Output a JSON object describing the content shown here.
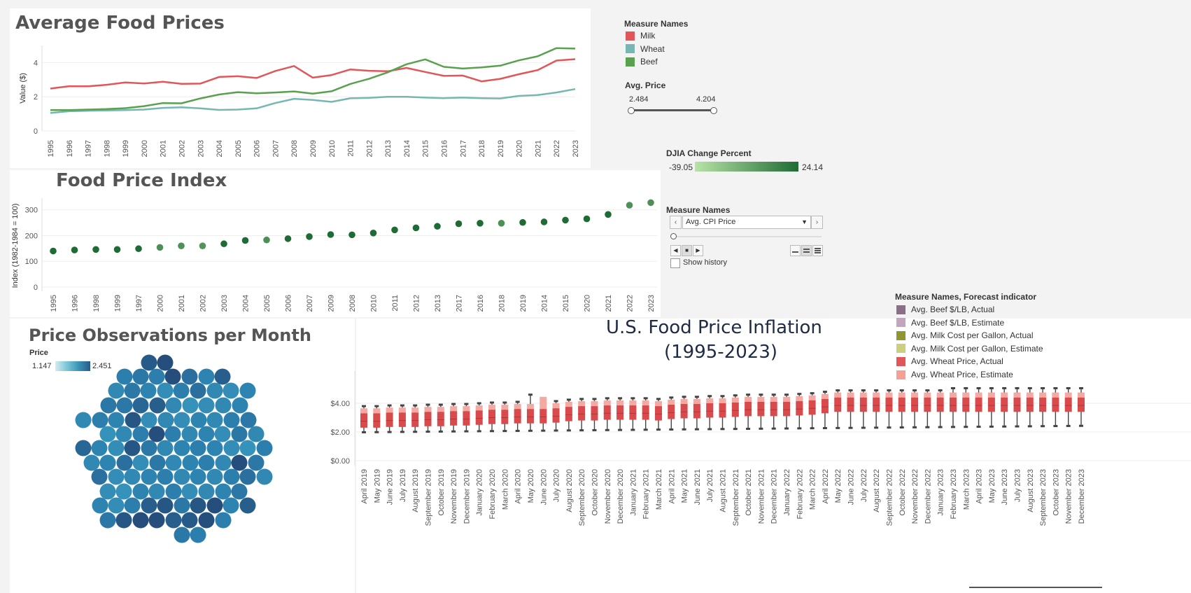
{
  "avg_prices": {
    "title": "Average Food Prices",
    "legend_title": "Measure Names",
    "legend": [
      {
        "name": "Milk",
        "color": "#e15759"
      },
      {
        "name": "Wheat",
        "color": "#76b7b2"
      },
      {
        "name": "Beef",
        "color": "#59a14f"
      }
    ]
  },
  "avg_price_filter": {
    "label": "Avg. Price",
    "min": "2.484",
    "max": "4.204"
  },
  "djia": {
    "label": "DJIA Change Percent",
    "min": "-39.05",
    "max": "24.14",
    "color_low": "#b8e3a6",
    "color_high": "#1e6b35"
  },
  "page_control": {
    "label": "Measure Names",
    "value": "Avg. CPI Price",
    "show_history": "Show history"
  },
  "fpi": {
    "title": "Food Price Index"
  },
  "obs": {
    "title": "Price Observations per Month",
    "legend_label": "Price",
    "min": "1.147",
    "max": "2.451"
  },
  "inflation": {
    "title_line1": "U.S. Food Price Inflation",
    "title_line2": "(1995-2023)",
    "legend_title": "Measure Names, Forecast indicator",
    "legend": [
      {
        "name": "Avg. Beef $/LB, Actual",
        "color": "#8a6f86"
      },
      {
        "name": "Avg. Beef $/LB, Estimate",
        "color": "#c2a6bd"
      },
      {
        "name": "Avg. Milk Cost per Gallon, Actual",
        "color": "#8f9631"
      },
      {
        "name": "Avg. Milk Cost per Gallon, Estimate",
        "color": "#ccd07c"
      },
      {
        "name": "Avg. Wheat Price, Actual",
        "color": "#e15759"
      },
      {
        "name": "Avg. Wheat Price, Estimate",
        "color": "#f59f95"
      }
    ]
  },
  "chart_data": [
    {
      "type": "line",
      "title": "Average Food Prices",
      "xlabel": "",
      "ylabel": "Value ($)",
      "ylim": [
        0,
        5
      ],
      "yticks": [
        "0",
        "2",
        "4"
      ],
      "x": [
        "1995",
        "1996",
        "1997",
        "1998",
        "1999",
        "2000",
        "2001",
        "2002",
        "2003",
        "2004",
        "2005",
        "2006",
        "2007",
        "2008",
        "2009",
        "2010",
        "2011",
        "2012",
        "2013",
        "2014",
        "2015",
        "2016",
        "2017",
        "2018",
        "2019",
        "2020",
        "2021",
        "2022",
        "2023"
      ],
      "series": [
        {
          "name": "Milk",
          "color": "#e15759",
          "values": [
            2.48,
            2.62,
            2.61,
            2.7,
            2.84,
            2.78,
            2.88,
            2.76,
            2.77,
            3.16,
            3.2,
            3.1,
            3.51,
            3.8,
            3.12,
            3.27,
            3.6,
            3.52,
            3.49,
            3.69,
            3.45,
            3.22,
            3.24,
            2.9,
            3.05,
            3.32,
            3.56,
            4.12,
            4.2
          ]
        },
        {
          "name": "Wheat",
          "color": "#76b7b2",
          "values": [
            1.05,
            1.15,
            1.18,
            1.2,
            1.22,
            1.25,
            1.35,
            1.38,
            1.32,
            1.23,
            1.25,
            1.32,
            1.63,
            1.88,
            1.81,
            1.7,
            1.91,
            1.94,
            2.0,
            2.0,
            1.95,
            1.92,
            1.95,
            1.92,
            1.9,
            2.05,
            2.1,
            2.25,
            2.45
          ]
        },
        {
          "name": "Beef",
          "color": "#59a14f",
          "values": [
            1.22,
            1.22,
            1.25,
            1.28,
            1.33,
            1.45,
            1.63,
            1.62,
            1.9,
            2.13,
            2.27,
            2.2,
            2.25,
            2.31,
            2.18,
            2.32,
            2.75,
            3.05,
            3.43,
            3.9,
            4.19,
            3.75,
            3.65,
            3.72,
            3.82,
            4.13,
            4.37,
            4.85,
            4.82
          ]
        }
      ]
    },
    {
      "type": "scatter",
      "title": "Food Price Index",
      "xlabel": "",
      "ylabel": "Index (1982-1984 = 100)",
      "ylim": [
        0,
        340
      ],
      "yticks": [
        "0",
        "100",
        "200",
        "300"
      ],
      "categories": [
        "1995",
        "1996",
        "1998",
        "1999",
        "1997",
        "2000",
        "2001",
        "2002",
        "2003",
        "2004",
        "2005",
        "2006",
        "2007",
        "2009",
        "2008",
        "2010",
        "2011",
        "2012",
        "2013",
        "2017",
        "2016",
        "2018",
        "2019",
        "2014",
        "2015",
        "2020",
        "2021",
        "2022",
        "2023"
      ],
      "values": [
        140,
        144,
        146,
        146,
        149,
        154,
        160,
        160,
        168,
        181,
        183,
        188,
        196,
        204,
        203,
        210,
        222,
        230,
        236,
        246,
        248,
        248,
        251,
        253,
        260,
        265,
        282,
        318,
        328
      ],
      "djia": [
        -5,
        -8,
        -8,
        -6,
        -10,
        4,
        12,
        20,
        -14,
        -6,
        3,
        -18,
        -10,
        -22,
        -39,
        -15,
        -12,
        -18,
        -24,
        -25,
        -18,
        2,
        -20,
        -18,
        -8,
        -10,
        -24,
        9,
        2
      ]
    },
    {
      "type": "box",
      "title": "U.S. Food Price Inflation (1995-2023)",
      "xlabel": "",
      "ylabel": "",
      "ylim": [
        0,
        6
      ],
      "yticks": [
        "$0.00",
        "$2.00",
        "$4.00"
      ],
      "categories": [
        "April 2019",
        "May 2019",
        "June 2019",
        "July 2019",
        "August 2019",
        "September 2019",
        "October 2019",
        "November 2019",
        "December 2019",
        "January 2020",
        "February 2020",
        "March 2020",
        "April 2020",
        "May 2020",
        "June 2020",
        "July 2020",
        "August 2020",
        "September 2020",
        "October 2020",
        "November 2020",
        "December 2020",
        "January 2021",
        "February 2021",
        "March 2021",
        "April 2021",
        "May 2021",
        "June 2021",
        "July 2021",
        "August 2021",
        "September 2021",
        "October 2021",
        "November 2021",
        "December 2021",
        "January 2022",
        "February 2022",
        "March 2022",
        "April 2022",
        "May 2022",
        "June 2022",
        "July 2022",
        "August 2022",
        "September 2022",
        "October 2022",
        "November 2022",
        "December 2022",
        "January 2023",
        "February 2023",
        "March 2023",
        "April 2023",
        "May 2023",
        "June 2023",
        "July 2023",
        "August 2023",
        "September 2023",
        "October 2023",
        "November 2023",
        "December 2023"
      ],
      "series": [
        {
          "name": "Avg. Wheat Price, Actual",
          "color": "#e15759",
          "median": [
            2.75,
            2.75,
            2.8,
            2.8,
            2.8,
            2.85,
            2.85,
            2.9,
            2.9,
            2.95,
            3.0,
            3.0,
            3.05,
            3.05,
            3.05,
            3.1,
            3.2,
            3.25,
            3.25,
            3.3,
            3.3,
            3.3,
            3.3,
            3.25,
            3.35,
            3.4,
            3.4,
            3.45,
            3.45,
            3.5,
            3.55,
            3.55,
            3.55,
            3.55,
            3.6,
            3.65,
            3.75,
            3.85,
            3.85,
            3.85,
            3.85,
            3.85,
            3.85,
            3.85,
            3.85,
            3.85,
            3.85,
            3.85,
            3.85,
            3.85,
            3.85,
            3.85,
            3.85,
            3.85,
            3.85,
            3.85,
            3.85
          ]
        }
      ]
    },
    {
      "type": "heatmap",
      "title": "Price Observations per Month",
      "values": [
        2.25,
        2.4,
        1.8,
        1.9,
        1.8,
        2.4,
        2.0,
        1.7,
        2.2,
        1.6,
        1.9,
        1.7,
        1.5,
        1.8,
        2.0,
        1.6,
        1.5,
        1.7,
        1.9,
        1.9,
        2.1,
        2.2,
        1.6,
        1.4,
        1.5,
        1.6,
        1.7,
        1.6,
        1.8,
        1.7,
        2.3,
        1.5,
        1.6,
        1.5,
        1.7,
        1.6,
        1.8,
        1.9,
        1.4,
        1.6,
        1.8,
        2.4,
        1.8,
        1.6,
        1.7,
        1.5,
        1.9,
        1.6,
        2.1,
        1.7,
        1.5,
        2.3,
        1.9,
        1.6,
        1.7,
        1.8,
        1.7,
        1.5,
        1.4,
        1.8,
        1.6,
        1.7,
        2.0,
        1.5,
        1.9,
        1.6,
        1.7,
        1.8,
        1.6,
        2.4,
        1.9,
        2.0,
        1.5,
        1.6,
        1.7,
        1.8,
        1.6,
        1.7,
        1.6,
        1.8,
        2.0,
        1.6,
        1.5,
        1.4,
        1.7,
        1.6,
        1.8,
        1.5,
        1.6,
        1.7,
        1.9,
        1.7,
        1.5,
        1.8,
        2.2,
        2.3,
        1.9,
        2.3,
        2.4,
        1.7,
        2.2,
        1.9,
        2.3,
        2.4,
        2.4,
        2.2
      ]
    }
  ]
}
